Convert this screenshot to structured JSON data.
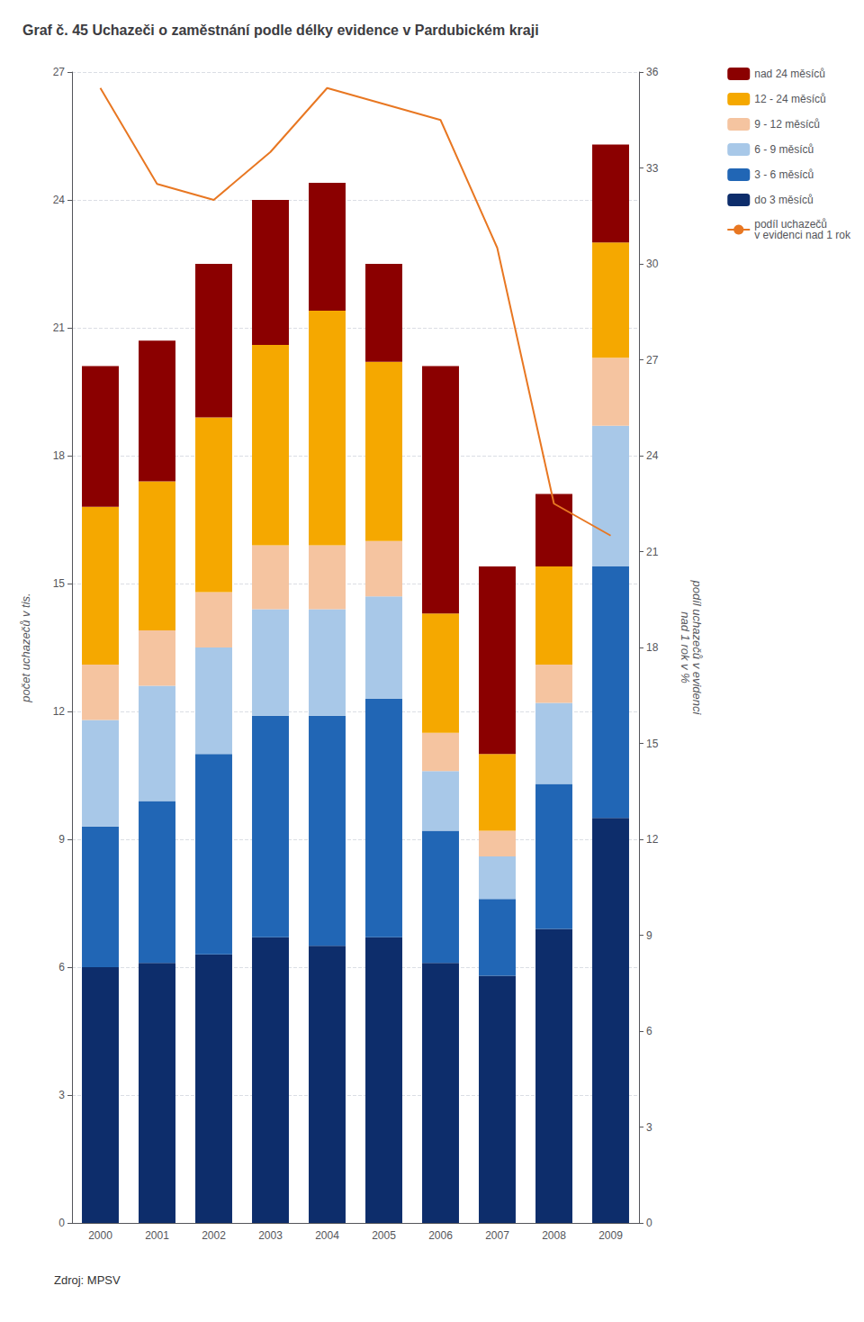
{
  "chart_data": {
    "type": "bar",
    "title": "Graf č. 45 Uchazeči o zaměstnání podle délky evidence v Pardubickém kraji",
    "stacked": true,
    "grid": true,
    "legend": "right",
    "categories": [
      "2000",
      "2001",
      "2002",
      "2003",
      "2004",
      "2005",
      "2006",
      "2007",
      "2008",
      "2009"
    ],
    "ylabel": "počet uchazečů v tis.",
    "y2label": "podíl uchazečů v evidenci\nnad 1 rok v %",
    "ylim": [
      0,
      27
    ],
    "yticks": [
      0,
      3,
      6,
      9,
      12,
      15,
      18,
      21,
      24,
      27
    ],
    "y2lim": [
      0,
      36
    ],
    "y2ticks": [
      0,
      3,
      6,
      9,
      12,
      15,
      18,
      21,
      24,
      27,
      30,
      33,
      36
    ],
    "annotations": [
      "Zdroj: MPSV"
    ],
    "series": [
      {
        "name": "do 3 měsíců",
        "type": "bar",
        "color": "#0d2d6b",
        "values": [
          6.0,
          6.1,
          6.3,
          6.7,
          6.5,
          6.7,
          6.1,
          5.8,
          6.9,
          9.5
        ]
      },
      {
        "name": "3 - 6 měsíců",
        "type": "bar",
        "color": "#2166b5",
        "values": [
          3.3,
          3.8,
          4.7,
          5.2,
          5.4,
          5.6,
          3.1,
          1.8,
          3.4,
          5.9
        ]
      },
      {
        "name": "6 - 9 měsíců",
        "type": "bar",
        "color": "#a8c8e8",
        "values": [
          2.5,
          2.7,
          2.5,
          2.5,
          2.5,
          2.4,
          1.4,
          1.0,
          1.9,
          3.3
        ]
      },
      {
        "name": "9 - 12 měsíců",
        "type": "bar",
        "color": "#f5c4a0",
        "values": [
          1.3,
          1.3,
          1.3,
          1.5,
          1.5,
          1.3,
          0.9,
          0.6,
          0.9,
          1.6
        ]
      },
      {
        "name": "12 - 24 měsíců",
        "type": "bar",
        "color": "#f5a800",
        "values": [
          3.7,
          3.5,
          4.1,
          4.7,
          5.5,
          4.2,
          2.8,
          1.8,
          2.3,
          2.7
        ]
      },
      {
        "name": "nad 24 měsíců",
        "type": "bar",
        "color": "#8b0000",
        "values": [
          3.3,
          3.3,
          3.6,
          3.4,
          3.0,
          2.3,
          5.8,
          4.4,
          1.7,
          2.3
        ]
      },
      {
        "name": "podíl uchazečů\nv evidenci nad 1 rok",
        "type": "line",
        "axis": "y2",
        "color": "#e87722",
        "values": [
          35.5,
          32.5,
          32.0,
          33.5,
          35.5,
          35.0,
          34.5,
          30.5,
          22.5,
          21.5
        ]
      }
    ]
  }
}
